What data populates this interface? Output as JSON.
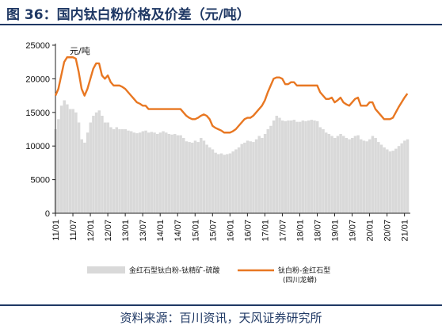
{
  "header": {
    "title": "图 36：国内钛白粉价格及价差（元/吨）"
  },
  "footer": {
    "source": "资料来源：百川资讯，天风证券研究所"
  },
  "colors": {
    "price": "#E87722",
    "spread": "#D9D9D9",
    "title": "#1f3864"
  },
  "chart_data": {
    "type": "area",
    "unit": "元/吨",
    "ylim": [
      0,
      25000
    ],
    "y_ticks": [
      0,
      5000,
      10000,
      15000,
      20000,
      25000
    ],
    "y_tick_labels": [
      "0",
      "5000",
      "10000",
      "15000",
      "20000",
      "25000"
    ],
    "x_range": [
      "2011-01",
      "2021-03"
    ],
    "x_tick_labels": [
      "11/01",
      "11/07",
      "12/01",
      "12/07",
      "13/01",
      "13/07",
      "14/01",
      "14/07",
      "15/01",
      "15/07",
      "16/01",
      "16/07",
      "17/01",
      "17/07",
      "18/01",
      "18/07",
      "19/01",
      "19/07",
      "20/01",
      "20/07",
      "21/01"
    ],
    "legend": [
      {
        "label": "金红石型钛白粉-钛精矿-硫酸",
        "style": "area"
      },
      {
        "label": "钛白粉-金红石型\n(四川龙蟒)",
        "style": "line"
      }
    ],
    "series": [
      {
        "name": "钛白粉-金红石型(四川龙蟒)",
        "style": "line",
        "points": [
          [
            "2011-01",
            17500
          ],
          [
            "2011-02",
            18500
          ],
          [
            "2011-03",
            20500
          ],
          [
            "2011-04",
            22500
          ],
          [
            "2011-05",
            23200
          ],
          [
            "2011-06",
            23200
          ],
          [
            "2011-07",
            23200
          ],
          [
            "2011-08",
            23000
          ],
          [
            "2011-09",
            21000
          ],
          [
            "2011-10",
            18500
          ],
          [
            "2011-11",
            17500
          ],
          [
            "2011-12",
            18500
          ],
          [
            "2012-01",
            20000
          ],
          [
            "2012-02",
            21500
          ],
          [
            "2012-03",
            22300
          ],
          [
            "2012-04",
            22300
          ],
          [
            "2012-05",
            20500
          ],
          [
            "2012-06",
            20000
          ],
          [
            "2012-07",
            20500
          ],
          [
            "2012-08",
            19500
          ],
          [
            "2012-09",
            19000
          ],
          [
            "2012-10",
            19000
          ],
          [
            "2012-11",
            19000
          ],
          [
            "2012-12",
            18800
          ],
          [
            "2013-01",
            18500
          ],
          [
            "2013-02",
            18000
          ],
          [
            "2013-03",
            17500
          ],
          [
            "2013-04",
            17000
          ],
          [
            "2013-05",
            16500
          ],
          [
            "2013-06",
            16300
          ],
          [
            "2013-07",
            16000
          ],
          [
            "2013-08",
            16000
          ],
          [
            "2013-09",
            15500
          ],
          [
            "2013-10",
            15500
          ],
          [
            "2013-11",
            15500
          ],
          [
            "2013-12",
            15500
          ],
          [
            "2014-01",
            15500
          ],
          [
            "2014-02",
            15500
          ],
          [
            "2014-03",
            15500
          ],
          [
            "2014-04",
            15500
          ],
          [
            "2014-05",
            15500
          ],
          [
            "2014-06",
            15500
          ],
          [
            "2014-07",
            15500
          ],
          [
            "2014-08",
            15500
          ],
          [
            "2014-09",
            15000
          ],
          [
            "2014-10",
            14500
          ],
          [
            "2014-11",
            14200
          ],
          [
            "2014-12",
            14000
          ],
          [
            "2015-01",
            14000
          ],
          [
            "2015-02",
            14200
          ],
          [
            "2015-03",
            14500
          ],
          [
            "2015-04",
            14700
          ],
          [
            "2015-05",
            14500
          ],
          [
            "2015-06",
            14000
          ],
          [
            "2015-07",
            13000
          ],
          [
            "2015-08",
            12700
          ],
          [
            "2015-09",
            12500
          ],
          [
            "2015-10",
            12300
          ],
          [
            "2015-11",
            12000
          ],
          [
            "2015-12",
            12000
          ],
          [
            "2016-01",
            12000
          ],
          [
            "2016-02",
            12200
          ],
          [
            "2016-03",
            12500
          ],
          [
            "2016-04",
            13000
          ],
          [
            "2016-05",
            13500
          ],
          [
            "2016-06",
            14000
          ],
          [
            "2016-07",
            14200
          ],
          [
            "2016-08",
            14200
          ],
          [
            "2016-09",
            14500
          ],
          [
            "2016-10",
            15000
          ],
          [
            "2016-11",
            15500
          ],
          [
            "2016-12",
            16000
          ],
          [
            "2017-01",
            16800
          ],
          [
            "2017-02",
            18000
          ],
          [
            "2017-03",
            19000
          ],
          [
            "2017-04",
            20000
          ],
          [
            "2017-05",
            20200
          ],
          [
            "2017-06",
            20200
          ],
          [
            "2017-07",
            20000
          ],
          [
            "2017-08",
            19200
          ],
          [
            "2017-09",
            19200
          ],
          [
            "2017-10",
            19500
          ],
          [
            "2017-11",
            19500
          ],
          [
            "2017-12",
            19000
          ],
          [
            "2018-01",
            19000
          ],
          [
            "2018-02",
            19000
          ],
          [
            "2018-03",
            19000
          ],
          [
            "2018-04",
            19000
          ],
          [
            "2018-05",
            19000
          ],
          [
            "2018-06",
            19000
          ],
          [
            "2018-07",
            19000
          ],
          [
            "2018-08",
            18000
          ],
          [
            "2018-09",
            17500
          ],
          [
            "2018-10",
            17000
          ],
          [
            "2018-11",
            17000
          ],
          [
            "2018-12",
            17200
          ],
          [
            "2019-01",
            16500
          ],
          [
            "2019-02",
            16800
          ],
          [
            "2019-03",
            17200
          ],
          [
            "2019-04",
            16500
          ],
          [
            "2019-05",
            16200
          ],
          [
            "2019-06",
            16000
          ],
          [
            "2019-07",
            16500
          ],
          [
            "2019-08",
            17000
          ],
          [
            "2019-09",
            17200
          ],
          [
            "2019-10",
            16000
          ],
          [
            "2019-11",
            16000
          ],
          [
            "2019-12",
            16000
          ],
          [
            "2020-01",
            16500
          ],
          [
            "2020-02",
            16500
          ],
          [
            "2020-03",
            15500
          ],
          [
            "2020-04",
            15000
          ],
          [
            "2020-05",
            14500
          ],
          [
            "2020-06",
            14000
          ],
          [
            "2020-07",
            14000
          ],
          [
            "2020-08",
            14000
          ],
          [
            "2020-09",
            14200
          ],
          [
            "2020-10",
            15000
          ],
          [
            "2020-11",
            15800
          ],
          [
            "2020-12",
            16500
          ],
          [
            "2021-01",
            17200
          ],
          [
            "2021-02",
            17800
          ]
        ]
      },
      {
        "name": "金红石型钛白粉-钛精矿-硫酸",
        "style": "area",
        "points": [
          [
            "2011-01",
            12500
          ],
          [
            "2011-02",
            14000
          ],
          [
            "2011-03",
            16000
          ],
          [
            "2011-04",
            16800
          ],
          [
            "2011-05",
            16200
          ],
          [
            "2011-06",
            15500
          ],
          [
            "2011-07",
            15500
          ],
          [
            "2011-08",
            15000
          ],
          [
            "2011-09",
            13500
          ],
          [
            "2011-10",
            11000
          ],
          [
            "2011-11",
            10500
          ],
          [
            "2011-12",
            12000
          ],
          [
            "2012-01",
            13500
          ],
          [
            "2012-02",
            14500
          ],
          [
            "2012-03",
            15000
          ],
          [
            "2012-04",
            15300
          ],
          [
            "2012-05",
            14500
          ],
          [
            "2012-06",
            13500
          ],
          [
            "2012-07",
            13500
          ],
          [
            "2012-08",
            12800
          ],
          [
            "2012-09",
            12500
          ],
          [
            "2012-10",
            12800
          ],
          [
            "2012-11",
            12500
          ],
          [
            "2012-12",
            12500
          ],
          [
            "2013-01",
            12500
          ],
          [
            "2013-02",
            12300
          ],
          [
            "2013-03",
            12200
          ],
          [
            "2013-04",
            12000
          ],
          [
            "2013-05",
            11900
          ],
          [
            "2013-06",
            12000
          ],
          [
            "2013-07",
            12200
          ],
          [
            "2013-08",
            12300
          ],
          [
            "2013-09",
            12000
          ],
          [
            "2013-10",
            12100
          ],
          [
            "2013-11",
            12000
          ],
          [
            "2013-12",
            11800
          ],
          [
            "2014-01",
            12000
          ],
          [
            "2014-02",
            12200
          ],
          [
            "2014-03",
            12000
          ],
          [
            "2014-04",
            11800
          ],
          [
            "2014-05",
            11700
          ],
          [
            "2014-06",
            11800
          ],
          [
            "2014-07",
            11600
          ],
          [
            "2014-08",
            11600
          ],
          [
            "2014-09",
            11200
          ],
          [
            "2014-10",
            10700
          ],
          [
            "2014-11",
            10600
          ],
          [
            "2014-12",
            10500
          ],
          [
            "2015-01",
            10800
          ],
          [
            "2015-02",
            10600
          ],
          [
            "2015-03",
            11200
          ],
          [
            "2015-04",
            10800
          ],
          [
            "2015-05",
            10200
          ],
          [
            "2015-06",
            9800
          ],
          [
            "2015-07",
            9500
          ],
          [
            "2015-08",
            9000
          ],
          [
            "2015-09",
            8800
          ],
          [
            "2015-10",
            8900
          ],
          [
            "2015-11",
            8700
          ],
          [
            "2015-12",
            8800
          ],
          [
            "2016-01",
            8900
          ],
          [
            "2016-02",
            9200
          ],
          [
            "2016-03",
            9500
          ],
          [
            "2016-04",
            9800
          ],
          [
            "2016-05",
            10300
          ],
          [
            "2016-06",
            10500
          ],
          [
            "2016-07",
            10800
          ],
          [
            "2016-08",
            10700
          ],
          [
            "2016-09",
            10600
          ],
          [
            "2016-10",
            11000
          ],
          [
            "2016-11",
            11500
          ],
          [
            "2016-12",
            11200
          ],
          [
            "2017-01",
            11800
          ],
          [
            "2017-02",
            12500
          ],
          [
            "2017-03",
            13000
          ],
          [
            "2017-04",
            13800
          ],
          [
            "2017-05",
            14500
          ],
          [
            "2017-06",
            14200
          ],
          [
            "2017-07",
            13800
          ],
          [
            "2017-08",
            13700
          ],
          [
            "2017-09",
            13800
          ],
          [
            "2017-10",
            13800
          ],
          [
            "2017-11",
            13900
          ],
          [
            "2017-12",
            13600
          ],
          [
            "2018-01",
            13600
          ],
          [
            "2018-02",
            13800
          ],
          [
            "2018-03",
            13700
          ],
          [
            "2018-04",
            13800
          ],
          [
            "2018-05",
            13900
          ],
          [
            "2018-06",
            13800
          ],
          [
            "2018-07",
            13700
          ],
          [
            "2018-08",
            12800
          ],
          [
            "2018-09",
            12500
          ],
          [
            "2018-10",
            12000
          ],
          [
            "2018-11",
            11800
          ],
          [
            "2018-12",
            11500
          ],
          [
            "2019-01",
            11200
          ],
          [
            "2019-02",
            11500
          ],
          [
            "2019-03",
            11800
          ],
          [
            "2019-04",
            11500
          ],
          [
            "2019-05",
            11200
          ],
          [
            "2019-06",
            11000
          ],
          [
            "2019-07",
            11200
          ],
          [
            "2019-08",
            11500
          ],
          [
            "2019-09",
            11600
          ],
          [
            "2019-10",
            11000
          ],
          [
            "2019-11",
            10800
          ],
          [
            "2019-12",
            10700
          ],
          [
            "2020-01",
            11000
          ],
          [
            "2020-02",
            11500
          ],
          [
            "2020-03",
            11200
          ],
          [
            "2020-04",
            10600
          ],
          [
            "2020-05",
            10200
          ],
          [
            "2020-06",
            9800
          ],
          [
            "2020-07",
            9500
          ],
          [
            "2020-08",
            9200
          ],
          [
            "2020-09",
            9300
          ],
          [
            "2020-10",
            9600
          ],
          [
            "2020-11",
            10000
          ],
          [
            "2020-12",
            10400
          ],
          [
            "2021-01",
            10800
          ],
          [
            "2021-02",
            11000
          ]
        ]
      }
    ]
  }
}
